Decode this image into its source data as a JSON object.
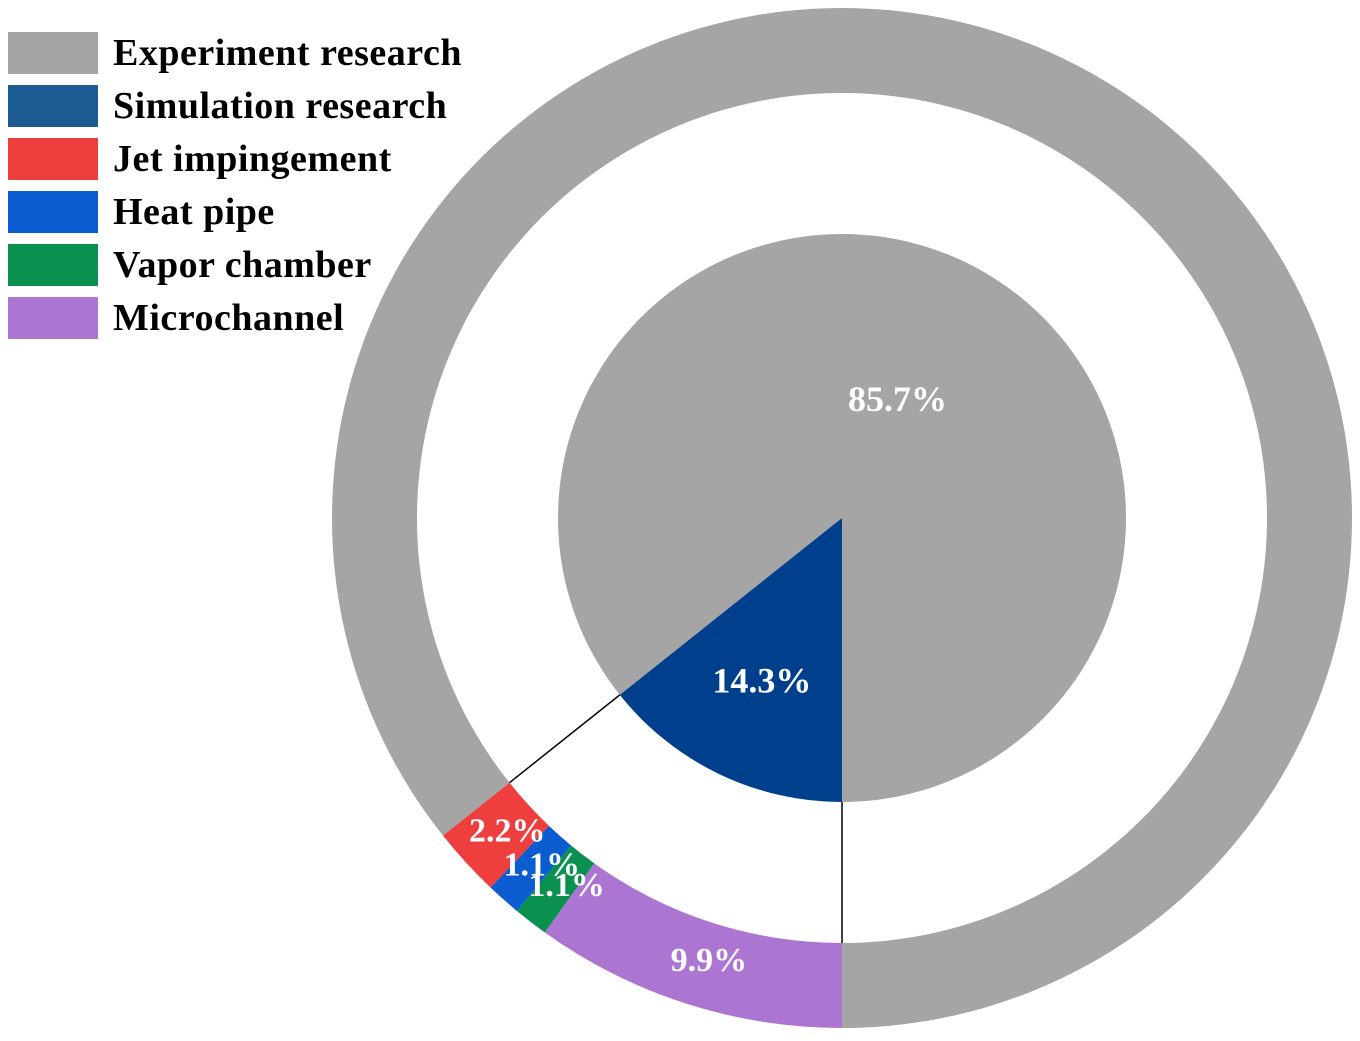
{
  "chart_data": {
    "type": "pie",
    "subtype": "pie-of-pie (inner pie with outer ring breakdown)",
    "inner": {
      "slices": [
        {
          "label": "Experiment research",
          "value": 85.7,
          "value_label": "85.7%",
          "color": "#a5a5a5"
        },
        {
          "label": "Simulation research",
          "value": 14.3,
          "value_label": "14.3%",
          "color": "#003f8c"
        }
      ]
    },
    "outer": {
      "breakdown_of": "Simulation research",
      "slices": [
        {
          "label": "Experiment research",
          "value": 85.7,
          "value_label": "",
          "color": "#a5a5a5"
        },
        {
          "label": "Jet impingement",
          "value": 2.2,
          "value_label": "2.2%",
          "color": "#ef3e3e"
        },
        {
          "label": "Heat pipe",
          "value": 1.1,
          "value_label": "1.1%",
          "color": "#0b5bd1"
        },
        {
          "label": "Vapor chamber",
          "value": 1.1,
          "value_label": "1.1%",
          "color": "#0a9150"
        },
        {
          "label": "Microchannel",
          "value": 9.9,
          "value_label": "9.9%",
          "color": "#ad75d2"
        }
      ]
    },
    "legend": {
      "position": "top-left",
      "entries": [
        {
          "label": "Experiment research",
          "color": "#a5a5a5"
        },
        {
          "label": "Simulation research",
          "color": "#1b5a92"
        },
        {
          "label": "Jet impingement",
          "color": "#ef3e3e"
        },
        {
          "label": "Heat pipe",
          "color": "#0b5bd1"
        },
        {
          "label": "Vapor chamber",
          "color": "#0a9150"
        },
        {
          "label": "Microchannel",
          "color": "#ad75d2"
        }
      ]
    },
    "title": "",
    "start_direction": "bottom",
    "direction": "counterclockwise"
  }
}
